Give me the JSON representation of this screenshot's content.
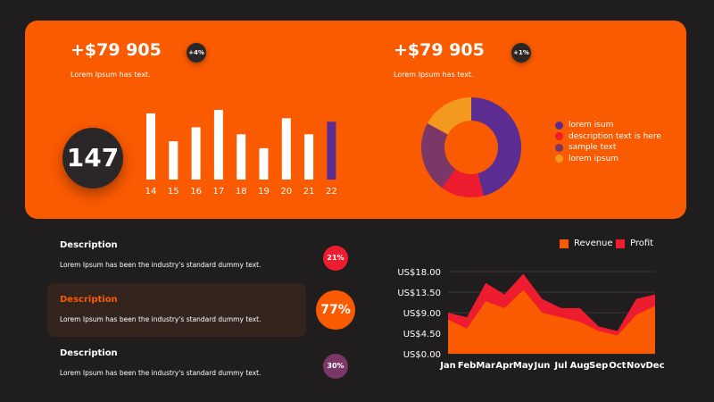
{
  "top": {
    "left_stat": {
      "value": "+$79 905",
      "subtitle": "Lorem Ipsum has text.",
      "badge": "+4%"
    },
    "right_stat": {
      "value": "+$79 905",
      "subtitle": "Lorem Ipsum has text.",
      "badge": "+1%"
    },
    "big_number": "147"
  },
  "descriptions": [
    {
      "title": "Description",
      "text": "Lorem Ipsum has been the industry's standard dummy text.",
      "badge": "21%",
      "badge_color": "#ed1c2e",
      "active": false
    },
    {
      "title": "Description",
      "text": "Lorem Ipsum has been the industry's standard dummy text.",
      "badge": "77%",
      "badge_color": "#fa5a00",
      "active": true
    },
    {
      "title": "Description",
      "text": "Lorem Ipsum has been the industry's standard dummy text.",
      "badge": "30%",
      "badge_color": "#7a3768",
      "active": false
    }
  ],
  "colors": {
    "orange": "#fa5a00",
    "dark": "#1f1d1e",
    "red": "#ed1c2e",
    "purple": "#5b2c92",
    "plum": "#7a3768",
    "amber": "#f39a1e"
  },
  "chart_data": [
    {
      "type": "bar",
      "categories": [
        "14",
        "15",
        "16",
        "17",
        "18",
        "19",
        "20",
        "21",
        "22"
      ],
      "values": [
        95,
        55,
        75,
        100,
        65,
        45,
        88,
        65,
        83
      ],
      "highlight_index": 8,
      "bar_color": "#ffffff",
      "highlight_color": "#5b2c92"
    },
    {
      "type": "pie",
      "donut": true,
      "labels": [
        "lorem isum",
        "description text is here",
        "sample text",
        "lorem ipsum"
      ],
      "values": [
        46,
        14,
        23,
        17
      ],
      "colors": [
        "#5b2c92",
        "#ed1c2e",
        "#7a3768",
        "#f39a1e"
      ]
    },
    {
      "type": "area",
      "categories": [
        "Jan",
        "Feb",
        "Mar",
        "Apr",
        "May",
        "Jun",
        "Jul",
        "Aug",
        "Sep",
        "Oct",
        "Nov",
        "Dec"
      ],
      "series": [
        {
          "name": "Revenue",
          "values": [
            7.5,
            5.5,
            11.5,
            10.0,
            14.0,
            9.0,
            8.0,
            7.0,
            5.0,
            4.0,
            8.5,
            10.5
          ],
          "color": "#fa5a00"
        },
        {
          "name": "Profit",
          "values": [
            9.0,
            8.0,
            15.5,
            13.0,
            17.5,
            12.0,
            10.0,
            10.0,
            6.0,
            5.0,
            12.0,
            13.0
          ],
          "color": "#ed1c2e"
        }
      ],
      "yticks": [
        "US$0.00",
        "US$4.50",
        "US$9.00",
        "US$13.50",
        "US$18.00"
      ],
      "ylim": [
        0,
        18
      ],
      "legend": "top-right"
    }
  ]
}
